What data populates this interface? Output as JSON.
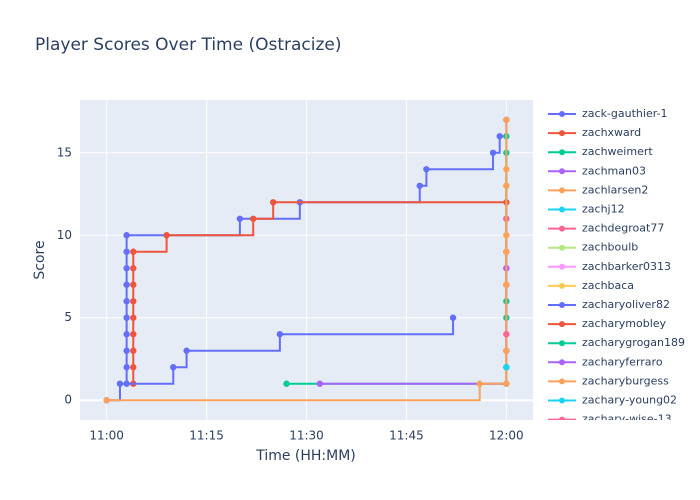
{
  "chart_data": {
    "type": "line",
    "line_shape": "hv",
    "title": "Player Scores Over Time (Ostracize)",
    "x_label": "Time (HH:MM)",
    "y_label": "Score",
    "xlim": [
      "10:56",
      "12:04"
    ],
    "xticks": [
      "11:00",
      "11:15",
      "11:30",
      "11:45",
      "12:00"
    ],
    "ylim": [
      -1.2,
      18.2
    ],
    "yticks": [
      0,
      5,
      10,
      15
    ],
    "grid": true,
    "legend": "right",
    "series": [
      {
        "name": "zack-gauthier-1",
        "color": "#636efa",
        "x": [
          "11:00",
          "11:02",
          "11:03",
          "11:03",
          "11:03",
          "11:03",
          "11:03",
          "11:03",
          "11:03",
          "11:03",
          "11:03",
          "11:20",
          "11:29",
          "11:47",
          "11:48",
          "11:58",
          "11:59",
          "12:00"
        ],
        "values": [
          0,
          1,
          2,
          3,
          4,
          5,
          6,
          7,
          8,
          9,
          10,
          11,
          12,
          13,
          14,
          15,
          16,
          17
        ]
      },
      {
        "name": "zachxward",
        "color": "#EF553B",
        "x": [
          "11:04",
          "11:04",
          "11:04",
          "11:04",
          "11:04",
          "11:04",
          "11:04",
          "11:04",
          "11:04",
          "11:09",
          "11:22",
          "11:25",
          "12:00"
        ],
        "values": [
          1,
          2,
          3,
          4,
          5,
          6,
          7,
          8,
          9,
          10,
          11,
          12,
          12
        ]
      },
      {
        "name": "zachweimert",
        "color": "#00cc96",
        "x": [
          "11:27",
          "12:00",
          "12:00"
        ],
        "values": [
          1,
          1,
          15
        ]
      },
      {
        "name": "zachman03",
        "color": "#ab63fa",
        "x": [
          "11:32",
          "12:00",
          "12:00"
        ],
        "values": [
          1,
          3,
          11
        ]
      },
      {
        "name": "zachlarsen2",
        "color": "#FFA15A",
        "x": [
          "11:00",
          "11:56",
          "12:00",
          "12:00"
        ],
        "values": [
          0,
          1,
          2,
          13
        ]
      },
      {
        "name": "zachj12",
        "color": "#19d3f3",
        "x": [
          "12:00"
        ],
        "values": [
          2
        ]
      },
      {
        "name": "zachdegroat77",
        "color": "#FF6692",
        "x": [
          "12:00",
          "12:00"
        ],
        "values": [
          8,
          11
        ]
      },
      {
        "name": "zachboulb",
        "color": "#B6E880",
        "x": [
          "12:00"
        ],
        "values": [
          6
        ]
      },
      {
        "name": "zachbarker0313",
        "color": "#FF97FF",
        "x": [
          "12:00"
        ],
        "values": [
          8
        ]
      },
      {
        "name": "zachbaca",
        "color": "#FECB52",
        "x": [
          "12:00"
        ],
        "values": [
          10
        ]
      },
      {
        "name": "zacharyoliver82",
        "color": "#636efa",
        "x": [
          "11:03",
          "11:10",
          "11:12",
          "11:26",
          "11:52"
        ],
        "values": [
          1,
          2,
          3,
          4,
          5
        ]
      },
      {
        "name": "zacharymobley",
        "color": "#EF553B",
        "x": [
          "12:00",
          "12:00"
        ],
        "values": [
          7,
          9
        ]
      },
      {
        "name": "zacharygrogan189",
        "color": "#00cc96",
        "x": [
          "12:00",
          "12:00",
          "12:00"
        ],
        "values": [
          5,
          6,
          16
        ]
      },
      {
        "name": "zacharyferraro",
        "color": "#ab63fa",
        "x": [
          "12:00",
          "12:00"
        ],
        "values": [
          3,
          8
        ]
      },
      {
        "name": "zacharyburgess",
        "color": "#FFA15A",
        "x": [
          "12:00",
          "12:00",
          "12:00",
          "12:00",
          "12:00",
          "12:00",
          "12:00",
          "12:00",
          "12:00",
          "12:00"
        ],
        "values": [
          1,
          2,
          3,
          4,
          7,
          9,
          10,
          13,
          14,
          17
        ]
      },
      {
        "name": "zachary-young02",
        "color": "#19d3f3",
        "x": [
          "12:00"
        ],
        "values": [
          2
        ]
      },
      {
        "name": "zachary-wise-13",
        "color": "#FF6692",
        "x": [
          "12:00"
        ],
        "values": [
          4
        ]
      }
    ]
  }
}
